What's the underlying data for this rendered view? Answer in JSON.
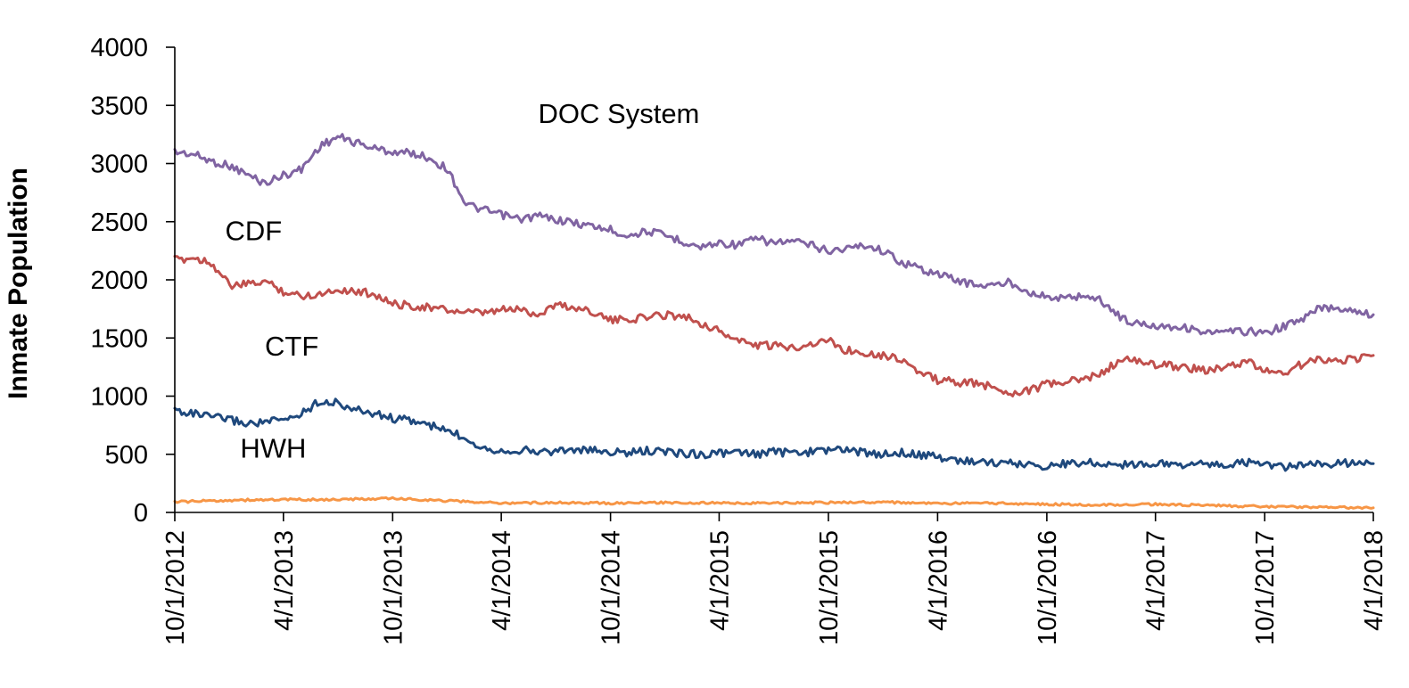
{
  "chart_data": {
    "type": "line",
    "title": "",
    "xlabel": "",
    "ylabel": "Inmate Population",
    "ylim": [
      0,
      4000
    ],
    "xlim": [
      "2012-10-01",
      "2018-04-01"
    ],
    "grid": false,
    "legend": "none (series labeled directly on chart)",
    "y_ticks": [
      "0",
      "500",
      "1000",
      "1500",
      "2000",
      "2500",
      "3000",
      "3500",
      "4000"
    ],
    "x_tick_labels": [
      "10/1/2012",
      "4/1/2013",
      "10/1/2013",
      "4/1/2014",
      "10/1/2014",
      "4/1/2015",
      "10/1/2015",
      "4/1/2016",
      "10/1/2016",
      "4/1/2017",
      "10/1/2017",
      "4/1/2018"
    ],
    "series": [
      {
        "name": "DOC System",
        "color": "#8064A2",
        "x": [
          "2012-10-01",
          "2012-11-01",
          "2012-12-01",
          "2013-01-01",
          "2013-02-01",
          "2013-03-01",
          "2013-04-01",
          "2013-05-01",
          "2013-06-01",
          "2013-07-01",
          "2013-08-01",
          "2013-09-01",
          "2013-10-01",
          "2013-11-01",
          "2013-12-01",
          "2014-01-01",
          "2014-02-01",
          "2014-03-01",
          "2014-04-01",
          "2014-05-01",
          "2014-06-01",
          "2014-07-01",
          "2014-08-01",
          "2014-09-01",
          "2014-10-01",
          "2014-11-01",
          "2014-12-01",
          "2015-01-01",
          "2015-02-01",
          "2015-03-01",
          "2015-04-01",
          "2015-05-01",
          "2015-06-01",
          "2015-07-01",
          "2015-08-01",
          "2015-09-01",
          "2015-10-01",
          "2015-11-01",
          "2015-12-01",
          "2016-01-01",
          "2016-02-01",
          "2016-03-01",
          "2016-04-01",
          "2016-05-01",
          "2016-06-01",
          "2016-07-01",
          "2016-08-01",
          "2016-09-01",
          "2016-10-01",
          "2016-11-01",
          "2016-12-01",
          "2017-01-01",
          "2017-02-01",
          "2017-03-01",
          "2017-04-01",
          "2017-05-01",
          "2017-06-01",
          "2017-07-01",
          "2017-08-01",
          "2017-09-01",
          "2017-10-01",
          "2017-11-01",
          "2017-12-01",
          "2018-01-01",
          "2018-02-01",
          "2018-03-01",
          "2018-04-01"
        ],
        "values": [
          3100,
          3080,
          3020,
          2980,
          2900,
          2830,
          2900,
          2950,
          3150,
          3230,
          3180,
          3130,
          3100,
          3090,
          3050,
          2950,
          2650,
          2600,
          2560,
          2520,
          2550,
          2520,
          2490,
          2460,
          2430,
          2380,
          2420,
          2380,
          2330,
          2280,
          2320,
          2300,
          2350,
          2320,
          2330,
          2300,
          2250,
          2270,
          2300,
          2250,
          2150,
          2100,
          2050,
          2000,
          1960,
          1950,
          1980,
          1900,
          1850,
          1840,
          1870,
          1820,
          1680,
          1620,
          1610,
          1600,
          1580,
          1540,
          1550,
          1560,
          1540,
          1600,
          1650,
          1760,
          1760,
          1740,
          1700
        ]
      },
      {
        "name": "CDF",
        "color": "#C0504D",
        "x": [
          "2012-10-01",
          "2012-11-01",
          "2012-12-01",
          "2013-01-01",
          "2013-02-01",
          "2013-03-01",
          "2013-04-01",
          "2013-05-01",
          "2013-06-01",
          "2013-07-01",
          "2013-08-01",
          "2013-09-01",
          "2013-10-01",
          "2013-11-01",
          "2013-12-01",
          "2014-01-01",
          "2014-02-01",
          "2014-03-01",
          "2014-04-01",
          "2014-05-01",
          "2014-06-01",
          "2014-07-01",
          "2014-08-01",
          "2014-09-01",
          "2014-10-01",
          "2014-11-01",
          "2014-12-01",
          "2015-01-01",
          "2015-02-01",
          "2015-03-01",
          "2015-04-01",
          "2015-05-01",
          "2015-06-01",
          "2015-07-01",
          "2015-08-01",
          "2015-09-01",
          "2015-10-01",
          "2015-11-01",
          "2015-12-01",
          "2016-01-01",
          "2016-02-01",
          "2016-03-01",
          "2016-04-01",
          "2016-05-01",
          "2016-06-01",
          "2016-07-01",
          "2016-08-01",
          "2016-09-01",
          "2016-10-01",
          "2016-11-01",
          "2016-12-01",
          "2017-01-01",
          "2017-02-01",
          "2017-03-01",
          "2017-04-01",
          "2017-05-01",
          "2017-06-01",
          "2017-07-01",
          "2017-08-01",
          "2017-09-01",
          "2017-10-01",
          "2017-11-01",
          "2017-12-01",
          "2018-01-01",
          "2018-02-01",
          "2018-03-01",
          "2018-04-01"
        ],
        "values": [
          2170,
          2190,
          2150,
          1950,
          1960,
          1990,
          1900,
          1860,
          1880,
          1920,
          1900,
          1880,
          1790,
          1780,
          1760,
          1740,
          1720,
          1710,
          1740,
          1750,
          1700,
          1790,
          1760,
          1730,
          1650,
          1660,
          1680,
          1700,
          1690,
          1630,
          1560,
          1480,
          1440,
          1430,
          1420,
          1450,
          1480,
          1390,
          1380,
          1350,
          1320,
          1200,
          1140,
          1120,
          1110,
          1080,
          1030,
          1050,
          1100,
          1120,
          1140,
          1200,
          1310,
          1300,
          1270,
          1260,
          1240,
          1220,
          1250,
          1300,
          1220,
          1200,
          1270,
          1320,
          1310,
          1320,
          1350
        ]
      },
      {
        "name": "CTF",
        "color": "#1F497D",
        "x": [
          "2012-10-01",
          "2012-11-01",
          "2012-12-01",
          "2013-01-01",
          "2013-02-01",
          "2013-03-01",
          "2013-04-01",
          "2013-05-01",
          "2013-06-01",
          "2013-07-01",
          "2013-08-01",
          "2013-09-01",
          "2013-10-01",
          "2013-11-01",
          "2013-12-01",
          "2014-01-01",
          "2014-02-01",
          "2014-03-01",
          "2014-04-01",
          "2014-05-01",
          "2014-06-01",
          "2014-07-01",
          "2014-08-01",
          "2014-09-01",
          "2014-10-01",
          "2014-11-01",
          "2014-12-01",
          "2015-01-01",
          "2015-02-01",
          "2015-03-01",
          "2015-04-01",
          "2015-05-01",
          "2015-06-01",
          "2015-07-01",
          "2015-08-01",
          "2015-09-01",
          "2015-10-01",
          "2015-11-01",
          "2015-12-01",
          "2016-01-01",
          "2016-02-01",
          "2016-03-01",
          "2016-04-01",
          "2016-05-01",
          "2016-06-01",
          "2016-07-01",
          "2016-08-01",
          "2016-09-01",
          "2016-10-01",
          "2016-11-01",
          "2016-12-01",
          "2017-01-01",
          "2017-02-01",
          "2017-03-01",
          "2017-04-01",
          "2017-05-01",
          "2017-06-01",
          "2017-07-01",
          "2017-08-01",
          "2017-09-01",
          "2017-10-01",
          "2017-11-01",
          "2017-12-01",
          "2018-01-01",
          "2018-02-01",
          "2018-03-01",
          "2018-04-01"
        ],
        "values": [
          880,
          850,
          820,
          800,
          760,
          780,
          790,
          850,
          960,
          940,
          880,
          850,
          810,
          790,
          750,
          700,
          640,
          560,
          530,
          540,
          520,
          530,
          540,
          530,
          520,
          510,
          530,
          520,
          510,
          500,
          510,
          510,
          500,
          520,
          510,
          520,
          540,
          540,
          510,
          500,
          520,
          490,
          480,
          450,
          440,
          430,
          420,
          410,
          400,
          420,
          430,
          420,
          410,
          420,
          420,
          410,
          420,
          410,
          410,
          430,
          410,
          390,
          400,
          410,
          420,
          430,
          420
        ]
      },
      {
        "name": "HWH",
        "color": "#F79646",
        "x": [
          "2012-10-01",
          "2013-01-01",
          "2013-04-01",
          "2013-07-01",
          "2013-10-01",
          "2014-01-01",
          "2014-04-01",
          "2014-07-01",
          "2014-10-01",
          "2015-01-01",
          "2015-04-01",
          "2015-07-01",
          "2015-10-01",
          "2016-01-01",
          "2016-04-01",
          "2016-07-01",
          "2016-10-01",
          "2017-01-01",
          "2017-04-01",
          "2017-07-01",
          "2017-10-01",
          "2018-01-01",
          "2018-04-01"
        ],
        "values": [
          90,
          105,
          110,
          110,
          120,
          100,
          80,
          85,
          80,
          85,
          80,
          80,
          85,
          90,
          75,
          80,
          70,
          65,
          70,
          60,
          50,
          45,
          40
        ]
      }
    ],
    "annotations": [
      {
        "text": "DOC System",
        "x": "2014-10-15",
        "y": 3350
      },
      {
        "text": "CDF",
        "x": "2013-02-10",
        "y": 2340
      },
      {
        "text": "CTF",
        "x": "2013-04-15",
        "y": 1350
      },
      {
        "text": "HWH",
        "x": "2013-03-15",
        "y": 470
      }
    ]
  }
}
